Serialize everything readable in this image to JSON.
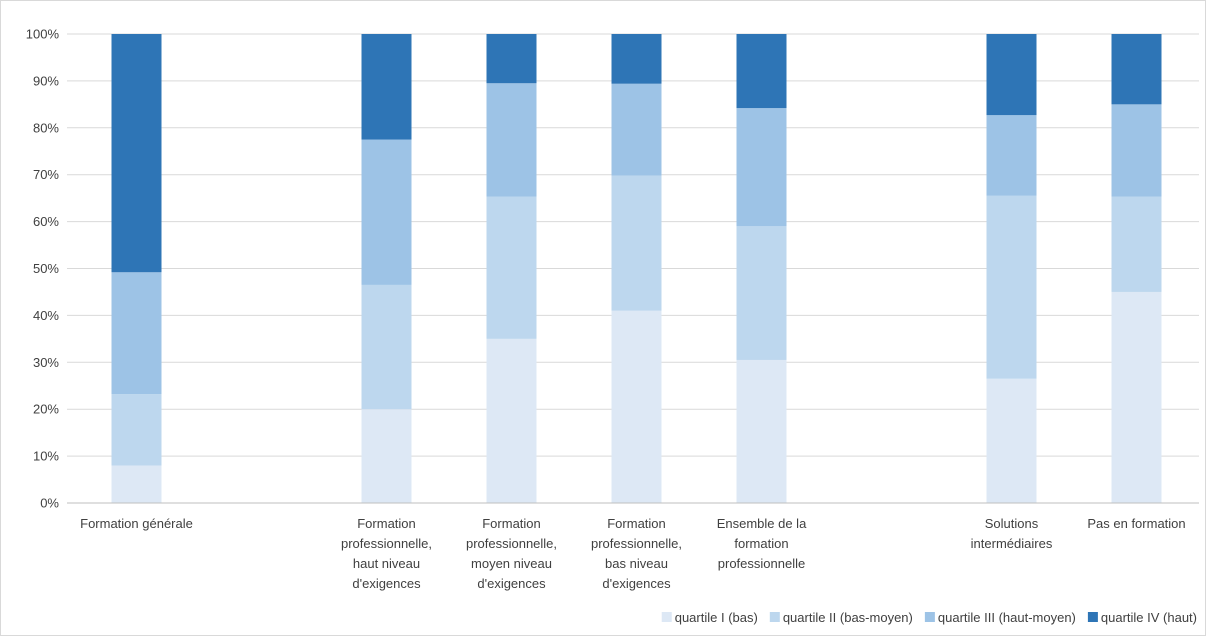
{
  "chart_data": {
    "type": "bar",
    "stacked": true,
    "percent_axis": true,
    "title": "",
    "xlabel": "",
    "ylabel": "",
    "ylim": [
      0,
      100
    ],
    "y_ticks": [
      "0%",
      "10%",
      "20%",
      "30%",
      "40%",
      "50%",
      "60%",
      "70%",
      "80%",
      "90%",
      "100%"
    ],
    "grid": true,
    "legend_position": "bottom-right",
    "categories": [
      {
        "label": [
          "Formation générale"
        ],
        "slot": 0
      },
      {
        "label": [
          "Formation",
          "professionnelle,",
          "haut niveau",
          "d'exigences"
        ],
        "slot": 2
      },
      {
        "label": [
          "Formation",
          "professionnelle,",
          "moyen niveau",
          "d'exigences"
        ],
        "slot": 3
      },
      {
        "label": [
          "Formation",
          "professionnelle,",
          "bas niveau",
          "d'exigences"
        ],
        "slot": 4
      },
      {
        "label": [
          "Ensemble de la",
          "formation",
          "professionnelle"
        ],
        "slot": 5
      },
      {
        "label": [
          "Solutions",
          "intermédiaires"
        ],
        "slot": 7
      },
      {
        "label": [
          "Pas en formation"
        ],
        "slot": 8
      }
    ],
    "series": [
      {
        "name": "quartile I (bas)",
        "color": "#dde8f5",
        "values": [
          8,
          20,
          35,
          41,
          30.5,
          26.5,
          45
        ]
      },
      {
        "name": "quartile II (bas-moyen)",
        "color": "#bdd7ee",
        "values": [
          15.2,
          26.5,
          30.3,
          28.8,
          28.5,
          39,
          20.3
        ]
      },
      {
        "name": "quartile III (haut-moyen)",
        "color": "#9dc3e6",
        "values": [
          26,
          31,
          24.2,
          19.6,
          25.2,
          17.2,
          19.7
        ]
      },
      {
        "name": "quartile IV (haut)",
        "color": "#2e75b6",
        "values": [
          50.8,
          22.5,
          10.5,
          10.6,
          15.8,
          17.3,
          15
        ]
      }
    ]
  }
}
